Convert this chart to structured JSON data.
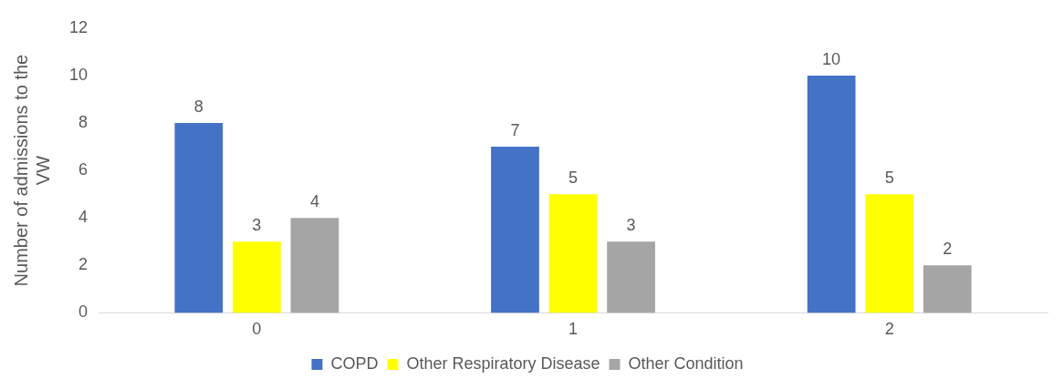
{
  "chart_data": {
    "type": "bar",
    "ylabel": "Number of admissions to the VW",
    "categories": [
      "0",
      "1",
      "2"
    ],
    "series": [
      {
        "name": "COPD",
        "color": "#4472c4",
        "values": [
          8,
          7,
          10
        ]
      },
      {
        "name": "Other Respiratory Disease",
        "color": "#ffff00",
        "values": [
          3,
          5,
          5
        ]
      },
      {
        "name": "Other Condition",
        "color": "#a5a5a5",
        "values": [
          4,
          3,
          2
        ]
      }
    ],
    "ylim": [
      0,
      12
    ],
    "yticks": [
      0,
      2,
      4,
      6,
      8,
      10,
      12
    ],
    "grid": false,
    "legend": "bottom",
    "data_labels": true
  }
}
